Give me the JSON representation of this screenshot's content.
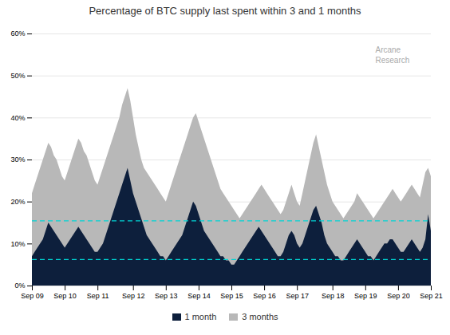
{
  "chart_data": {
    "type": "area",
    "title": "Percentage of BTC supply last spent within 3 and 1 months",
    "categories": [
      "Sep 09",
      null,
      null,
      null,
      null,
      null,
      null,
      null,
      null,
      null,
      null,
      null,
      "Sep 10",
      null,
      null,
      null,
      null,
      null,
      null,
      null,
      null,
      null,
      null,
      null,
      "Sep 11",
      null,
      null,
      null,
      null,
      null,
      null,
      null,
      null,
      null,
      null,
      null,
      null,
      "Sep 12",
      null,
      null,
      null,
      null,
      null,
      null,
      null,
      null,
      null,
      null,
      null,
      "Sep 13",
      null,
      null,
      null,
      null,
      null,
      null,
      null,
      null,
      null,
      null,
      null,
      "Sep 14",
      null,
      null,
      null,
      null,
      null,
      null,
      null,
      null,
      null,
      null,
      null,
      "Sep 15",
      null,
      null,
      null,
      null,
      null,
      null,
      null,
      null,
      null,
      null,
      null,
      "Sep 16",
      null,
      null,
      null,
      null,
      null,
      null,
      null,
      null,
      null,
      null,
      null,
      "Sep 17",
      null,
      null,
      null,
      null,
      null,
      null,
      null,
      null,
      null,
      null,
      null,
      null,
      "Sep 18",
      null,
      null,
      null,
      null,
      null,
      null,
      null,
      null,
      null,
      null,
      null,
      "Sep 19",
      null,
      null,
      null,
      null,
      null,
      null,
      null,
      null,
      null,
      null,
      null,
      "Sep 20",
      null,
      null,
      null,
      null,
      null,
      null,
      null,
      null,
      null,
      null,
      null,
      "Sep 21"
    ],
    "series": [
      {
        "name": "1 month",
        "color": "#0d1f3c",
        "values": [
          0.07,
          0.08,
          0.09,
          0.1,
          0.11,
          0.13,
          0.15,
          0.14,
          0.13,
          0.12,
          0.11,
          0.1,
          0.09,
          0.1,
          0.11,
          0.12,
          0.13,
          0.14,
          0.13,
          0.12,
          0.11,
          0.1,
          0.09,
          0.08,
          0.08,
          0.09,
          0.1,
          0.12,
          0.14,
          0.16,
          0.18,
          0.2,
          0.22,
          0.24,
          0.26,
          0.28,
          0.25,
          0.22,
          0.2,
          0.18,
          0.16,
          0.14,
          0.12,
          0.11,
          0.1,
          0.09,
          0.08,
          0.07,
          0.07,
          0.06,
          0.07,
          0.08,
          0.09,
          0.1,
          0.11,
          0.12,
          0.14,
          0.16,
          0.18,
          0.2,
          0.19,
          0.17,
          0.15,
          0.13,
          0.12,
          0.11,
          0.1,
          0.09,
          0.08,
          0.07,
          0.07,
          0.06,
          0.06,
          0.05,
          0.05,
          0.06,
          0.07,
          0.08,
          0.09,
          0.1,
          0.11,
          0.12,
          0.13,
          0.14,
          0.13,
          0.12,
          0.11,
          0.1,
          0.09,
          0.08,
          0.07,
          0.07,
          0.08,
          0.1,
          0.12,
          0.13,
          0.12,
          0.1,
          0.09,
          0.1,
          0.12,
          0.14,
          0.16,
          0.18,
          0.19,
          0.17,
          0.15,
          0.12,
          0.1,
          0.09,
          0.08,
          0.07,
          0.07,
          0.06,
          0.06,
          0.07,
          0.08,
          0.09,
          0.1,
          0.11,
          0.1,
          0.09,
          0.08,
          0.07,
          0.07,
          0.06,
          0.07,
          0.08,
          0.09,
          0.1,
          0.1,
          0.11,
          0.11,
          0.1,
          0.09,
          0.08,
          0.08,
          0.09,
          0.1,
          0.11,
          0.1,
          0.09,
          0.08,
          0.09,
          0.11,
          0.17,
          0.13
        ]
      },
      {
        "name": "3 months",
        "color": "#b8b8b8",
        "values": [
          0.22,
          0.24,
          0.26,
          0.28,
          0.3,
          0.32,
          0.34,
          0.33,
          0.31,
          0.3,
          0.28,
          0.26,
          0.25,
          0.27,
          0.29,
          0.31,
          0.33,
          0.35,
          0.34,
          0.32,
          0.31,
          0.29,
          0.27,
          0.25,
          0.24,
          0.26,
          0.28,
          0.3,
          0.32,
          0.34,
          0.36,
          0.38,
          0.4,
          0.43,
          0.45,
          0.47,
          0.44,
          0.4,
          0.36,
          0.33,
          0.3,
          0.28,
          0.27,
          0.26,
          0.25,
          0.24,
          0.23,
          0.22,
          0.21,
          0.2,
          0.22,
          0.24,
          0.26,
          0.28,
          0.3,
          0.32,
          0.34,
          0.36,
          0.38,
          0.4,
          0.41,
          0.39,
          0.37,
          0.35,
          0.33,
          0.31,
          0.29,
          0.27,
          0.25,
          0.23,
          0.22,
          0.21,
          0.2,
          0.19,
          0.18,
          0.17,
          0.16,
          0.17,
          0.18,
          0.19,
          0.2,
          0.21,
          0.22,
          0.23,
          0.24,
          0.23,
          0.22,
          0.21,
          0.2,
          0.19,
          0.18,
          0.17,
          0.18,
          0.2,
          0.22,
          0.24,
          0.22,
          0.2,
          0.19,
          0.22,
          0.25,
          0.28,
          0.31,
          0.34,
          0.36,
          0.33,
          0.3,
          0.27,
          0.24,
          0.22,
          0.2,
          0.19,
          0.18,
          0.17,
          0.16,
          0.17,
          0.18,
          0.19,
          0.2,
          0.22,
          0.21,
          0.2,
          0.19,
          0.18,
          0.17,
          0.16,
          0.17,
          0.18,
          0.19,
          0.2,
          0.21,
          0.22,
          0.23,
          0.22,
          0.21,
          0.2,
          0.21,
          0.22,
          0.23,
          0.24,
          0.23,
          0.22,
          0.21,
          0.24,
          0.27,
          0.28,
          0.26
        ]
      }
    ],
    "reference_lines": [
      {
        "value": 0.155,
        "color": "#00d4d4",
        "line_style": "dashed"
      },
      {
        "value": 0.063,
        "color": "#00d4d4",
        "line_style": "dashed"
      }
    ],
    "annotations": [
      {
        "text": "Arcane\nResearch",
        "color": "#aaaaaa"
      }
    ],
    "ylim": [
      0,
      0.6
    ],
    "yticks": [
      {
        "value": 0,
        "label": "0%"
      },
      {
        "value": 0.1,
        "label": "10%"
      },
      {
        "value": 0.2,
        "label": "20%"
      },
      {
        "value": 0.3,
        "label": "30%"
      },
      {
        "value": 0.4,
        "label": "40%"
      },
      {
        "value": 0.5,
        "label": "50%"
      },
      {
        "value": 0.6,
        "label": "60%"
      }
    ],
    "grid": true,
    "legend": "bottom"
  }
}
